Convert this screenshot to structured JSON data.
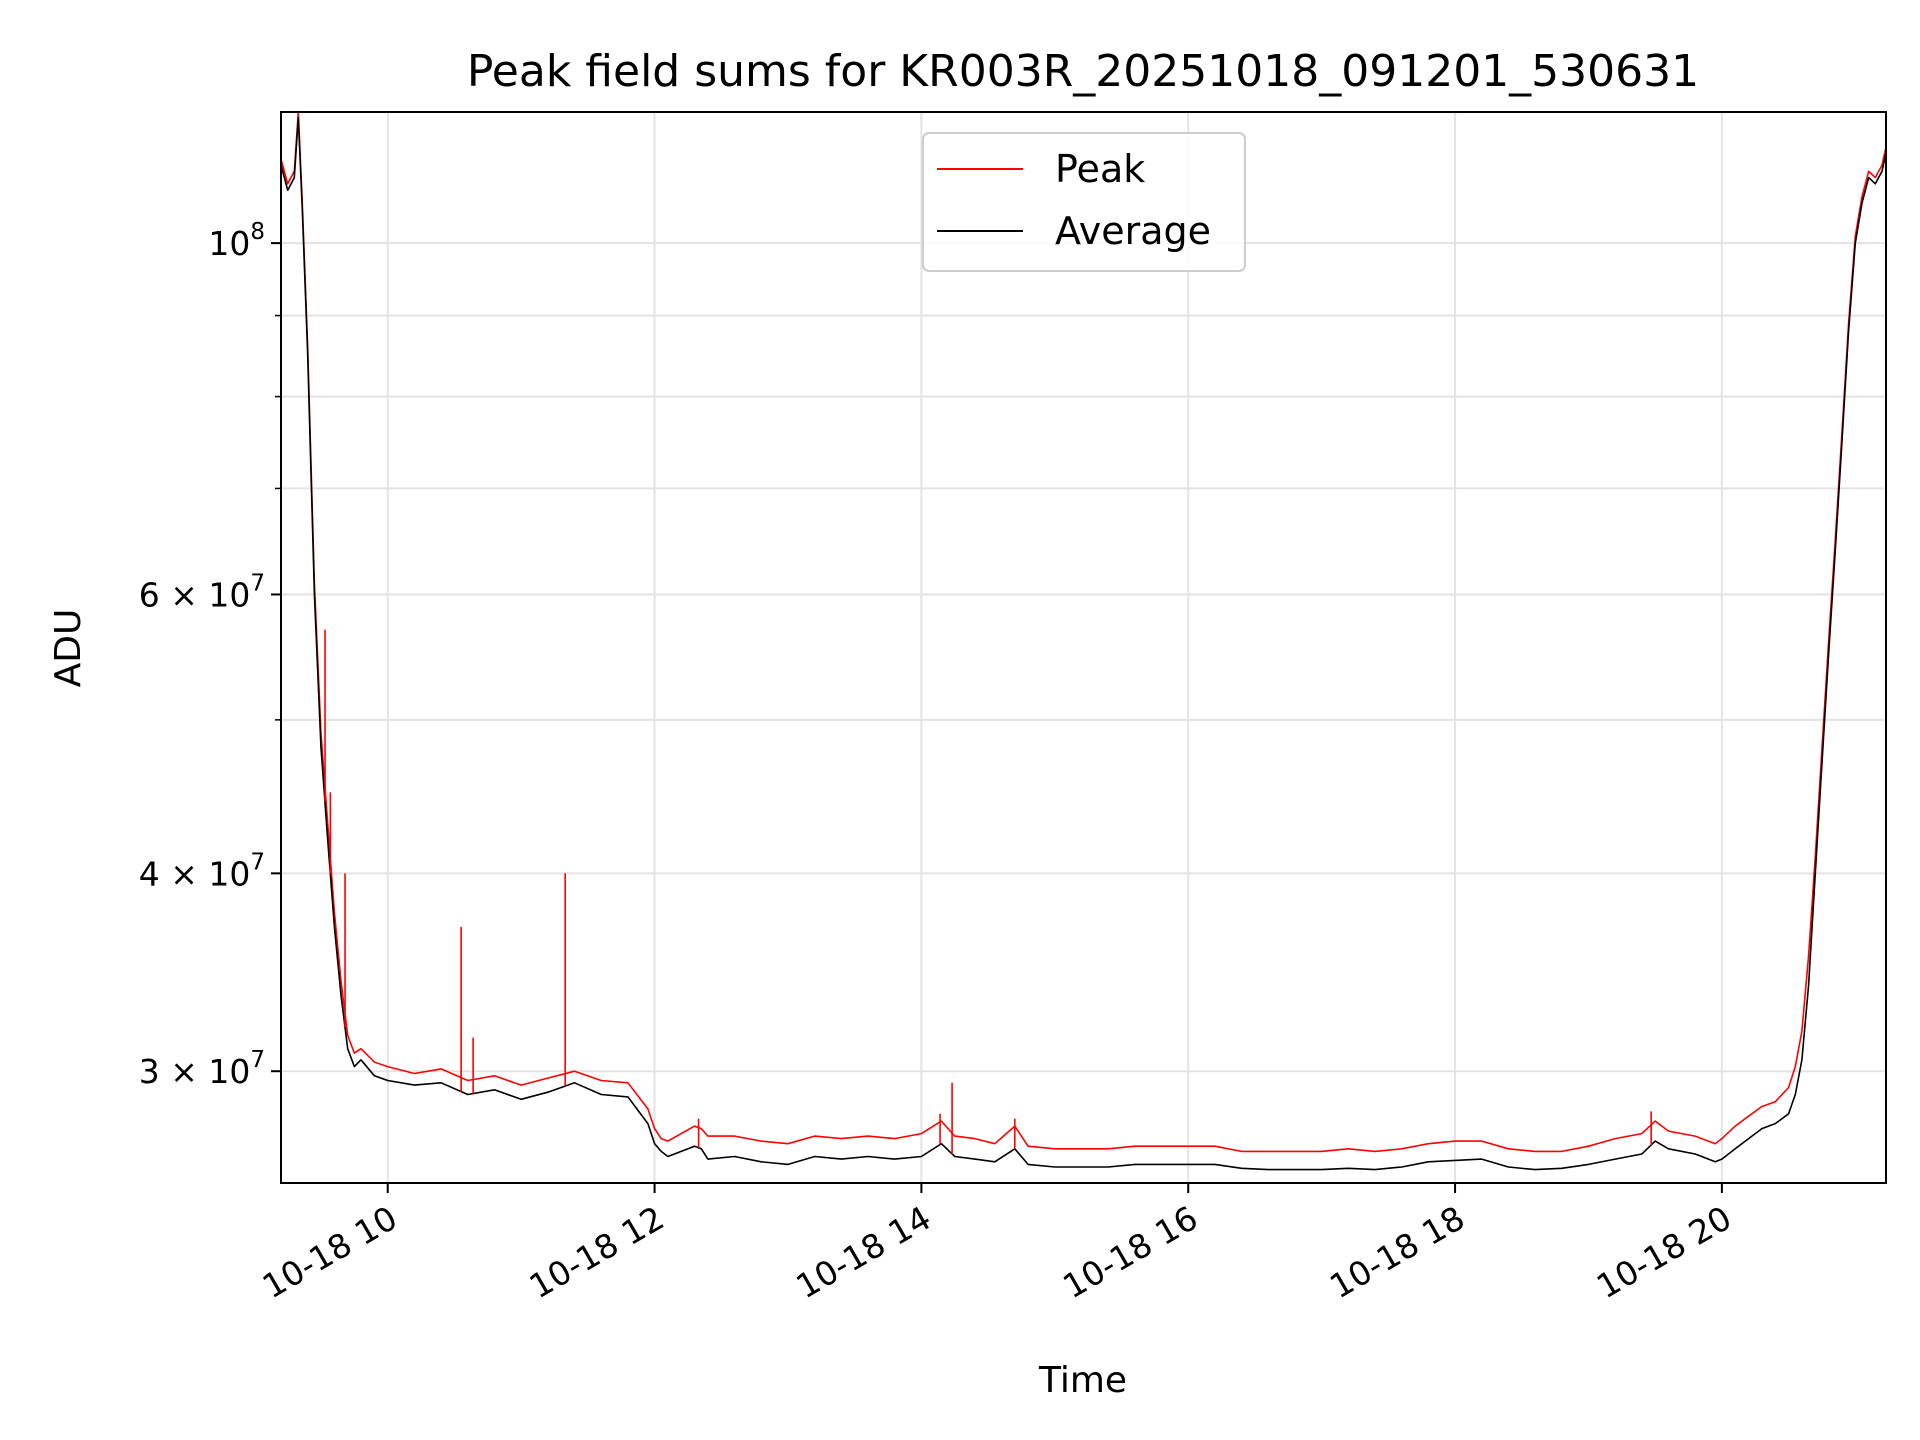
{
  "chart_data": {
    "type": "line",
    "title": "Peak field sums for KR003R_20251018_091201_530631",
    "xlabel": "Time",
    "ylabel": "ADU",
    "y_scale": "log",
    "x_range_hours": [
      9.2,
      21.23
    ],
    "ylim": [
      25500000,
      121000000
    ],
    "x_ticks": [
      {
        "hour": 10,
        "label": "10-18 10"
      },
      {
        "hour": 12,
        "label": "10-18 12"
      },
      {
        "hour": 14,
        "label": "10-18 14"
      },
      {
        "hour": 16,
        "label": "10-18 16"
      },
      {
        "hour": 18,
        "label": "10-18 18"
      },
      {
        "hour": 20,
        "label": "10-18 20"
      }
    ],
    "y_major_ticks": [
      {
        "value": 100000000,
        "base": "10",
        "exp": "8"
      },
      {
        "value": 60000000,
        "base": "6 × 10",
        "exp": "7"
      },
      {
        "value": 40000000,
        "base": "4 × 10",
        "exp": "7"
      },
      {
        "value": 30000000,
        "base": "3 × 10",
        "exp": "7"
      }
    ],
    "y_minor_ticks": [
      90000000,
      80000000,
      70000000,
      50000000
    ],
    "legend": {
      "position": "top-center",
      "entries": [
        {
          "label": "Peak",
          "color": "#ff0000"
        },
        {
          "label": "Average",
          "color": "#000000"
        }
      ]
    },
    "series": [
      {
        "name": "Average",
        "color": "#000000",
        "x_hours": [
          9.2,
          9.25,
          9.3,
          9.33,
          9.36,
          9.4,
          9.45,
          9.5,
          9.55,
          9.6,
          9.65,
          9.7,
          9.75,
          9.8,
          9.9,
          10.0,
          10.2,
          10.4,
          10.6,
          10.8,
          11.0,
          11.2,
          11.4,
          11.6,
          11.8,
          11.95,
          12.0,
          12.05,
          12.1,
          12.2,
          12.3,
          12.35,
          12.4,
          12.6,
          12.8,
          13.0,
          13.2,
          13.4,
          13.6,
          13.8,
          14.0,
          14.15,
          14.25,
          14.4,
          14.55,
          14.7,
          14.8,
          15.0,
          15.2,
          15.4,
          15.6,
          15.8,
          16.0,
          16.2,
          16.4,
          16.6,
          16.8,
          17.0,
          17.2,
          17.4,
          17.6,
          17.8,
          18.0,
          18.2,
          18.4,
          18.6,
          18.8,
          19.0,
          19.2,
          19.4,
          19.5,
          19.6,
          19.8,
          19.95,
          20.0,
          20.1,
          20.2,
          20.3,
          20.4,
          20.5,
          20.55,
          20.6,
          20.65,
          20.7,
          20.75,
          20.8,
          20.85,
          20.9,
          20.95,
          21.0,
          21.05,
          21.1,
          21.15,
          21.2,
          21.23
        ],
        "values": [
          112000000,
          108000000,
          110000000,
          120000000,
          105000000,
          85000000,
          60000000,
          48000000,
          42000000,
          37000000,
          33500000,
          31000000,
          30200000,
          30500000,
          29800000,
          29600000,
          29400000,
          29500000,
          29000000,
          29200000,
          28800000,
          29100000,
          29500000,
          29000000,
          28900000,
          27800000,
          27000000,
          26700000,
          26500000,
          26700000,
          26900000,
          26800000,
          26400000,
          26500000,
          26300000,
          26200000,
          26500000,
          26400000,
          26500000,
          26400000,
          26500000,
          27000000,
          26500000,
          26400000,
          26300000,
          26800000,
          26200000,
          26100000,
          26100000,
          26100000,
          26200000,
          26200000,
          26200000,
          26200000,
          26050000,
          26000000,
          26000000,
          26000000,
          26050000,
          26000000,
          26100000,
          26300000,
          26350000,
          26400000,
          26100000,
          26000000,
          26050000,
          26200000,
          26400000,
          26600000,
          27100000,
          26800000,
          26600000,
          26300000,
          26400000,
          26800000,
          27200000,
          27600000,
          27800000,
          28200000,
          29000000,
          30500000,
          34000000,
          40000000,
          47000000,
          55000000,
          64000000,
          75000000,
          88000000,
          100000000,
          106000000,
          110000000,
          109000000,
          111000000,
          114000000
        ]
      },
      {
        "name": "Peak",
        "color": "#ff0000",
        "x_hours": [
          9.2,
          9.25,
          9.3,
          9.33,
          9.36,
          9.4,
          9.45,
          9.5,
          9.55,
          9.6,
          9.65,
          9.7,
          9.75,
          9.8,
          9.9,
          10.0,
          10.2,
          10.4,
          10.6,
          10.8,
          11.0,
          11.2,
          11.4,
          11.6,
          11.8,
          11.95,
          12.0,
          12.05,
          12.1,
          12.2,
          12.3,
          12.35,
          12.4,
          12.6,
          12.8,
          13.0,
          13.2,
          13.4,
          13.6,
          13.8,
          14.0,
          14.15,
          14.25,
          14.4,
          14.55,
          14.7,
          14.8,
          15.0,
          15.2,
          15.4,
          15.6,
          15.8,
          16.0,
          16.2,
          16.4,
          16.6,
          16.8,
          17.0,
          17.2,
          17.4,
          17.6,
          17.8,
          18.0,
          18.2,
          18.4,
          18.6,
          18.8,
          19.0,
          19.2,
          19.4,
          19.5,
          19.6,
          19.8,
          19.95,
          20.0,
          20.1,
          20.2,
          20.3,
          20.4,
          20.5,
          20.55,
          20.6,
          20.65,
          20.7,
          20.75,
          20.8,
          20.85,
          20.9,
          20.95,
          21.0,
          21.05,
          21.1,
          21.15,
          21.2,
          21.23
        ],
        "values": [
          113000000,
          109000000,
          111000000,
          121000000,
          106000000,
          86000000,
          61000000,
          49000000,
          43000000,
          37800000,
          34200000,
          31600000,
          30800000,
          31000000,
          30400000,
          30200000,
          29900000,
          30100000,
          29600000,
          29800000,
          29400000,
          29700000,
          30000000,
          29600000,
          29500000,
          28400000,
          27600000,
          27200000,
          27100000,
          27400000,
          27700000,
          27600000,
          27300000,
          27300000,
          27100000,
          27000000,
          27300000,
          27200000,
          27300000,
          27200000,
          27400000,
          27900000,
          27300000,
          27200000,
          27000000,
          27700000,
          26900000,
          26800000,
          26800000,
          26800000,
          26900000,
          26900000,
          26900000,
          26900000,
          26700000,
          26700000,
          26700000,
          26700000,
          26800000,
          26700000,
          26800000,
          27000000,
          27100000,
          27100000,
          26800000,
          26700000,
          26700000,
          26900000,
          27200000,
          27400000,
          27900000,
          27500000,
          27300000,
          27000000,
          27200000,
          27700000,
          28100000,
          28500000,
          28700000,
          29300000,
          30200000,
          31800000,
          35500000,
          41000000,
          48000000,
          56000000,
          65000000,
          76000000,
          89000000,
          101000000,
          107000000,
          111000000,
          110000000,
          112000000,
          115000000
        ]
      }
    ],
    "peak_spikes": [
      {
        "hour": 9.53,
        "value": 57000000
      },
      {
        "hour": 9.57,
        "value": 45000000
      },
      {
        "hour": 9.68,
        "value": 40000000
      },
      {
        "hour": 10.55,
        "value": 37000000
      },
      {
        "hour": 10.64,
        "value": 31500000
      },
      {
        "hour": 11.33,
        "value": 40000000
      },
      {
        "hour": 12.33,
        "value": 28000000
      },
      {
        "hour": 14.14,
        "value": 28200000
      },
      {
        "hour": 14.23,
        "value": 29500000
      },
      {
        "hour": 14.7,
        "value": 28000000
      },
      {
        "hour": 19.47,
        "value": 28300000
      }
    ]
  }
}
